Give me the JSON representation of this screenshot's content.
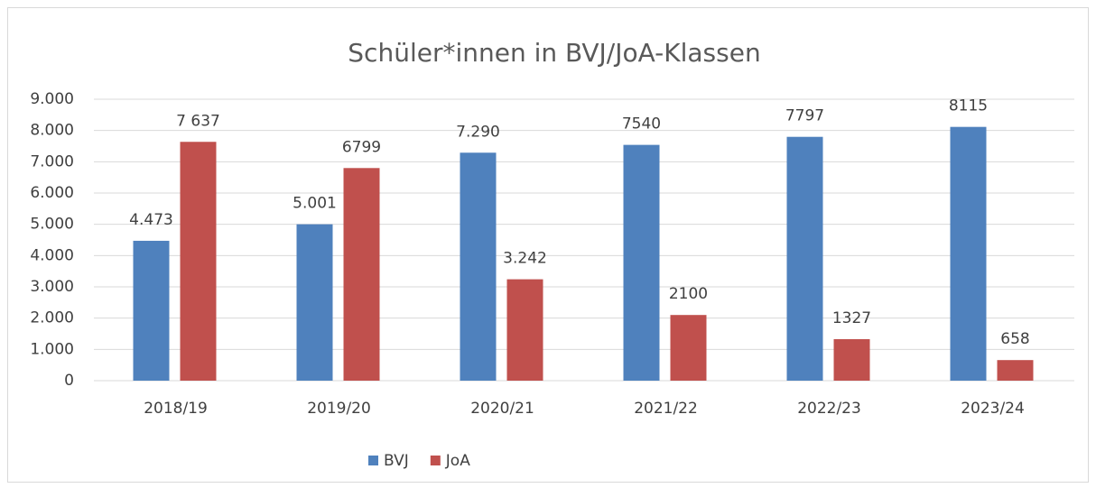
{
  "chart_data": {
    "type": "bar",
    "title": "Schüler*innen in BVJ/JoA-Klassen",
    "categories": [
      "2018/19",
      "2019/20",
      "2020/21",
      "2021/22",
      "2022/23",
      "2023/24"
    ],
    "series": [
      {
        "name": "BVJ",
        "color": "#4f81bd",
        "values": [
          4473,
          5001,
          7290,
          7540,
          7797,
          8115
        ],
        "value_labels": [
          "4.473",
          "5.001",
          "7.290",
          "7540",
          "7797",
          "8115"
        ]
      },
      {
        "name": "JoA",
        "color": "#c0504d",
        "values": [
          7637,
          6799,
          3242,
          2100,
          1327,
          658
        ],
        "value_labels": [
          "7 637",
          "6799",
          "3.242",
          "2100",
          "1327",
          "658"
        ]
      }
    ],
    "ylim": [
      0,
      9000
    ],
    "yticks": [
      0,
      {
        "value": 1000,
        "label": "1.000"
      },
      {
        "value": 2000,
        "label": "2.000"
      },
      {
        "value": 3000,
        "label": "3.000"
      },
      {
        "value": 4000,
        "label": "4.000"
      },
      {
        "value": 5000,
        "label": "5.000"
      },
      {
        "value": 6000,
        "label": "6.000"
      },
      {
        "value": 7000,
        "label": "7.000"
      },
      {
        "value": 8000,
        "label": "8.000"
      },
      {
        "value": 9000,
        "label": "9.000"
      }
    ],
    "grid": true,
    "legend": "bottom"
  }
}
